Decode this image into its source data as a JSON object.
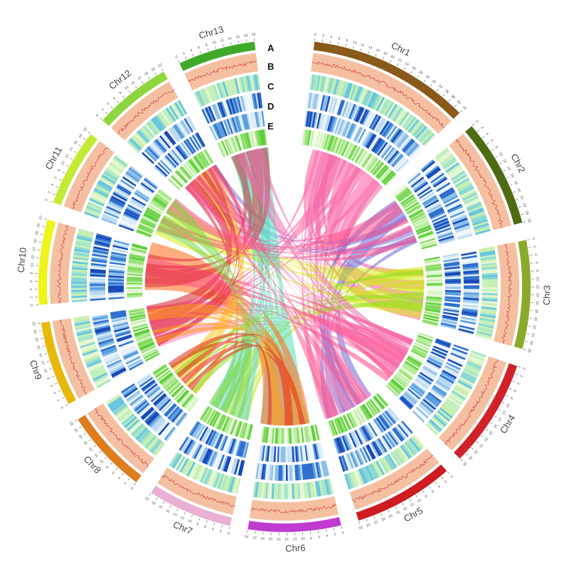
{
  "diagram": {
    "title": "",
    "colors": {
      "trackA": "#f5c0a2",
      "trackA_line": "#d0474a",
      "tickColor": "#666666"
    },
    "chromosomes": [
      {
        "name": "Chr1",
        "color": "#8a5a1a",
        "ticks": 21
      },
      {
        "name": "Chr2",
        "color": "#4e6b12",
        "ticks": 14
      },
      {
        "name": "Chr3",
        "color": "#8aab2a",
        "ticks": 14
      },
      {
        "name": "Chr4",
        "color": "#d1222a",
        "ticks": 14
      },
      {
        "name": "Chr5",
        "color": "#cf1b22",
        "ticks": 13
      },
      {
        "name": "Chr6",
        "color": "#c03bd2",
        "ticks": 12
      },
      {
        "name": "Chr7",
        "color": "#eab0d4",
        "ticks": 11
      },
      {
        "name": "Chr8",
        "color": "#df7c1c",
        "ticks": 11
      },
      {
        "name": "Chr9",
        "color": "#e8b80c",
        "ticks": 11
      },
      {
        "name": "Chr10",
        "color": "#eef41c",
        "ticks": 11
      },
      {
        "name": "Chr11",
        "color": "#c5ea35",
        "ticks": 10
      },
      {
        "name": "Chr12",
        "color": "#8ed63c",
        "ticks": 10
      },
      {
        "name": "Chr13",
        "color": "#3faa2a",
        "ticks": 10
      }
    ],
    "tracks": [
      "A",
      "B",
      "C",
      "D",
      "E"
    ],
    "links": [
      {
        "from": "Chr1",
        "to": "Chr3",
        "color": "#ff5aa0",
        "n": 14,
        "w": 9
      },
      {
        "from": "Chr1",
        "to": "Chr9",
        "color": "#ff5aa0",
        "n": 10,
        "w": 6
      },
      {
        "from": "Chr1",
        "to": "Chr5",
        "color": "#f06aa8",
        "n": 8,
        "w": 7
      },
      {
        "from": "Chr2",
        "to": "Chr5",
        "color": "#6a6ad8",
        "n": 9,
        "w": 7
      },
      {
        "from": "Chr2",
        "to": "Chr12",
        "color": "#7a7ae0",
        "n": 6,
        "w": 5
      },
      {
        "from": "Chr3",
        "to": "Chr11",
        "color": "#d6f012",
        "n": 12,
        "w": 8
      },
      {
        "from": "Chr3",
        "to": "Chr7",
        "color": "#c8e81a",
        "n": 8,
        "w": 6
      },
      {
        "from": "Chr4",
        "to": "Chr9",
        "color": "#ff7eb4",
        "n": 9,
        "w": 6
      },
      {
        "from": "Chr4",
        "to": "Chr12",
        "color": "#ff7eb4",
        "n": 7,
        "w": 5
      },
      {
        "from": "Chr5",
        "to": "Chr1",
        "color": "#ff8ec0",
        "n": 6,
        "w": 5
      },
      {
        "from": "Chr6",
        "to": "Chr13",
        "color": "#58e0c0",
        "n": 14,
        "w": 10
      },
      {
        "from": "Chr6",
        "to": "Chr10",
        "color": "#ff6a1a",
        "n": 16,
        "w": 11
      },
      {
        "from": "Chr7",
        "to": "Chr13",
        "color": "#5ed8c4",
        "n": 10,
        "w": 7
      },
      {
        "from": "Chr8",
        "to": "Chr12",
        "color": "#ffc21a",
        "n": 8,
        "w": 7
      },
      {
        "from": "Chr8",
        "to": "Chr3",
        "color": "#8ee020",
        "n": 6,
        "w": 5
      },
      {
        "from": "Chr9",
        "to": "Chr12",
        "color": "#d91e2e",
        "n": 10,
        "w": 7
      },
      {
        "from": "Chr10",
        "to": "Chr4",
        "color": "#ff4a8a",
        "n": 8,
        "w": 6
      },
      {
        "from": "Chr10",
        "to": "Chr13",
        "color": "#e0303a",
        "n": 9,
        "w": 6
      },
      {
        "from": "Chr11",
        "to": "Chr2",
        "color": "#ff4a8a",
        "n": 10,
        "w": 7
      },
      {
        "from": "Chr11",
        "to": "Chr7",
        "color": "#7ad84a",
        "n": 8,
        "w": 6
      },
      {
        "from": "Chr12",
        "to": "Chr5",
        "color": "#ff5a90",
        "n": 7,
        "w": 5
      },
      {
        "from": "Chr13",
        "to": "Chr4",
        "color": "#f070b0",
        "n": 8,
        "w": 6
      },
      {
        "from": "Chr9",
        "to": "Chr6",
        "color": "#ff9e1a",
        "n": 7,
        "w": 5
      },
      {
        "from": "Chr8",
        "to": "Chr6",
        "color": "#e8281e",
        "n": 6,
        "w": 5
      }
    ]
  }
}
